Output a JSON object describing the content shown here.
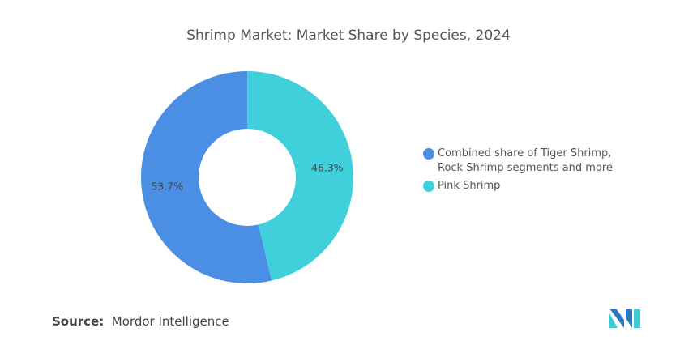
{
  "chart_data": {
    "type": "pie",
    "title": "Shrimp Market: Market Share by Species, 2024",
    "slices": [
      {
        "name": "Pink Shrimp",
        "value": 46.3,
        "label": "46.3%",
        "color": "#40d0dc"
      },
      {
        "name": "Combined share of Tiger Shrimp, Rock Shrimp segments and more",
        "value": 53.7,
        "label": "53.7%",
        "color": "#4a8fe4"
      }
    ],
    "legend_position": "right",
    "donut": true
  },
  "legend": [
    {
      "label": "Combined share of Tiger Shrimp, Rock Shrimp segments and more",
      "color": "#4a8fe4"
    },
    {
      "label": "Pink Shrimp",
      "color": "#40d0dc"
    }
  ],
  "source": {
    "prefix": "Source:",
    "name": "Mordor Intelligence"
  },
  "logo": {
    "text": "Mordor Intelligence"
  }
}
